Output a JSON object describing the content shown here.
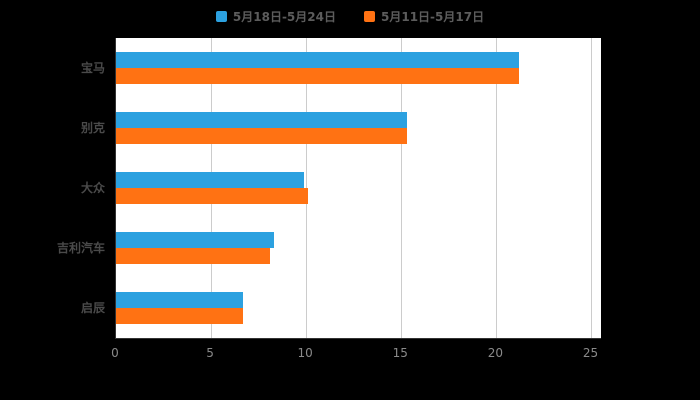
{
  "chart_data": {
    "type": "bar",
    "orientation": "horizontal",
    "title": "",
    "categories": [
      "宝马",
      "别克",
      "大众",
      "吉利汽车",
      "启辰"
    ],
    "series": [
      {
        "name": "5月18日-5月24日",
        "color": "#2ca1e0",
        "values": [
          21.2,
          15.3,
          9.9,
          8.3,
          6.7
        ]
      },
      {
        "name": "5月11日-5月17日",
        "color": "#ff7213",
        "values": [
          21.2,
          15.3,
          10.1,
          8.1,
          6.7
        ]
      }
    ],
    "xlim": [
      0,
      25.5
    ],
    "xticks": [
      0,
      5,
      10,
      15,
      20,
      25
    ],
    "grid": true,
    "legend_position": "top",
    "background": "#000000",
    "plot_background": "#ffffff",
    "axis_color": "#333333",
    "gridline_color": "#cccccc",
    "category_label_color": "#4a4a4a",
    "tick_label_color": "#8a8a8a",
    "legend_label_color": "#5c5c5c"
  }
}
